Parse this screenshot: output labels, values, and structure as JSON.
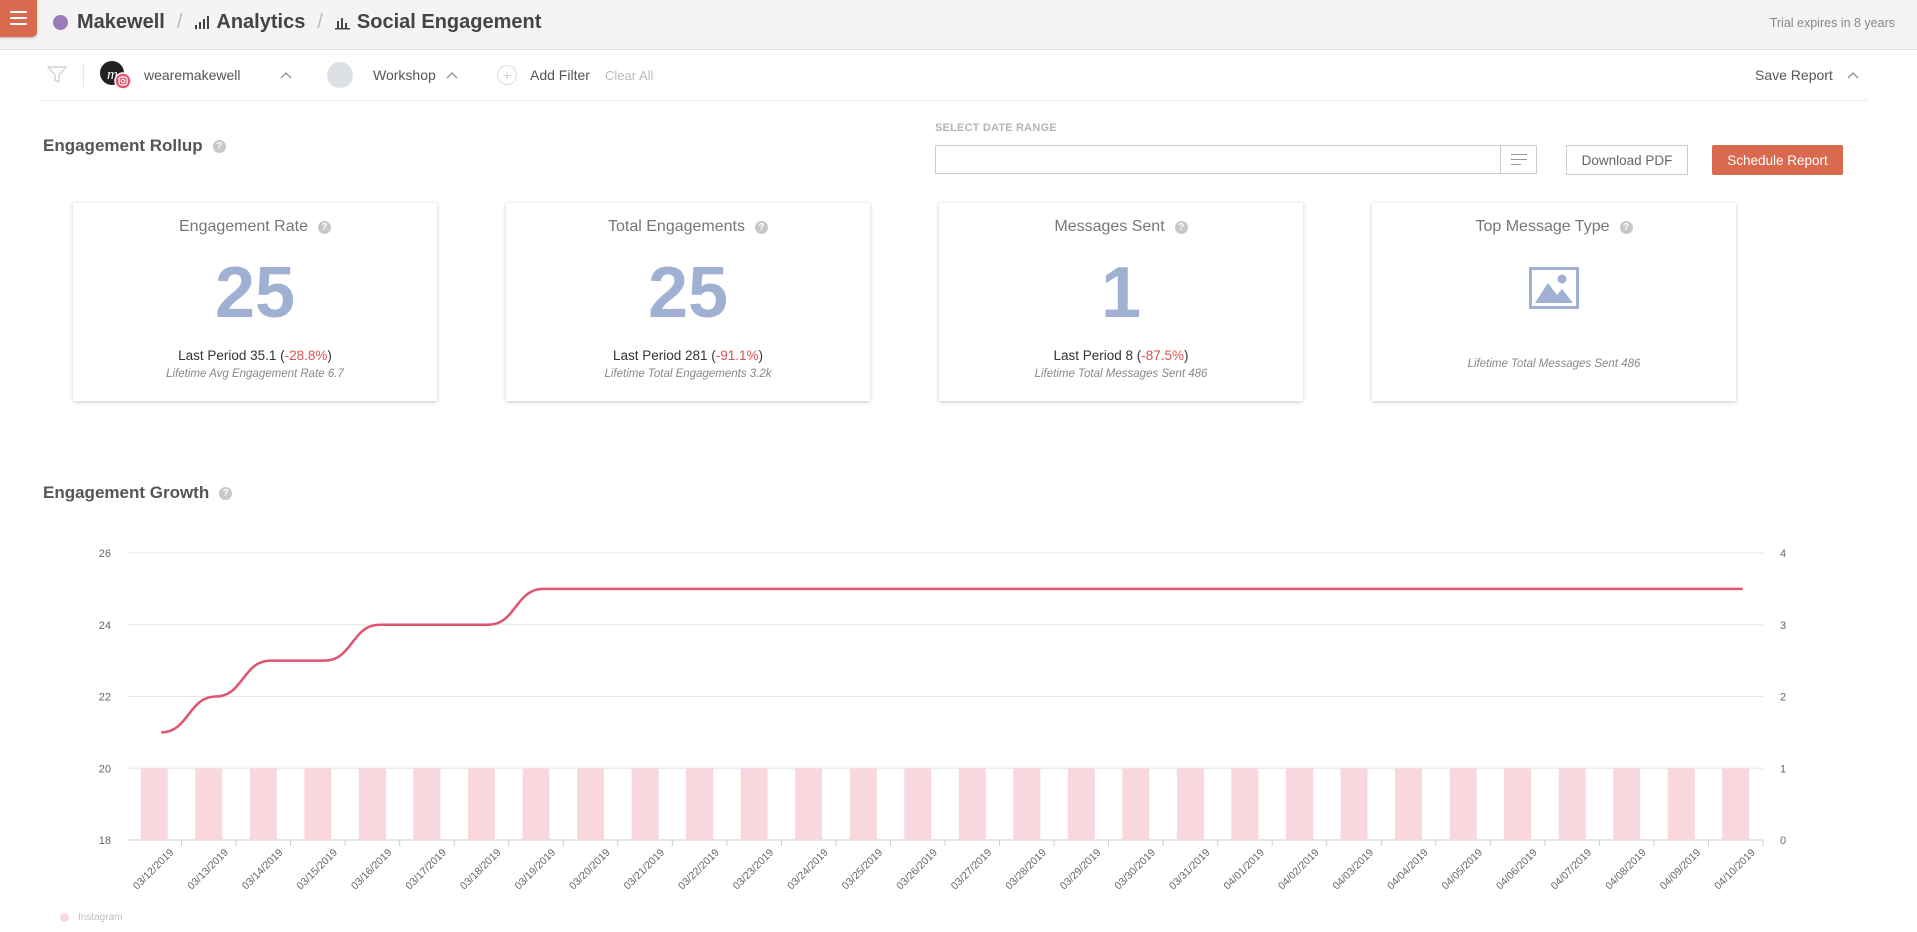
{
  "header": {
    "breadcrumbs": [
      "Makewell",
      "Analytics",
      "Social Engagement"
    ],
    "trial_text": "Trial expires in 8 years"
  },
  "filters": {
    "profile_name": "wearemakewell",
    "group_name": "Workshop",
    "add_filter": "Add Filter",
    "clear_all": "Clear All",
    "save_report": "Save Report"
  },
  "rollup": {
    "title": "Engagement Rollup",
    "date_range_label": "SELECT DATE RANGE",
    "date_range_value": "",
    "download_pdf": "Download PDF",
    "schedule_report": "Schedule Report",
    "cards": [
      {
        "title": "Engagement Rate",
        "value": "25",
        "last_period_prefix": "Last Period 35.1 (",
        "change": "-28.8%",
        "last_period_suffix": ")",
        "lifetime": "Lifetime Avg Engagement Rate 6.7"
      },
      {
        "title": "Total Engagements",
        "value": "25",
        "last_period_prefix": "Last Period 281 (",
        "change": "-91.1%",
        "last_period_suffix": ")",
        "lifetime": "Lifetime Total Engagements 3.2k"
      },
      {
        "title": "Messages Sent",
        "value": "1",
        "last_period_prefix": "Last Period 8 (",
        "change": "-87.5%",
        "last_period_suffix": ")",
        "lifetime": "Lifetime Total Messages Sent 486"
      },
      {
        "title": "Top Message Type",
        "icon": "image-icon",
        "lifetime": "Lifetime Total Messages Sent 486"
      }
    ]
  },
  "growth": {
    "title": "Engagement Growth"
  },
  "colors": {
    "accent": "#d9694f",
    "line": "#e0546e",
    "bar": "#f8d7df",
    "metric": "#9fb0d2",
    "negative": "#d9534f"
  },
  "chart_data": {
    "type": "bar",
    "categories": [
      "03/12/2019",
      "03/13/2019",
      "03/14/2019",
      "03/15/2019",
      "03/16/2019",
      "03/17/2019",
      "03/18/2019",
      "03/19/2019",
      "03/20/2019",
      "03/21/2019",
      "03/22/2019",
      "03/23/2019",
      "03/24/2019",
      "03/25/2019",
      "03/26/2019",
      "03/27/2019",
      "03/28/2019",
      "03/29/2019",
      "03/30/2019",
      "03/31/2019",
      "04/01/2019",
      "04/02/2019",
      "04/03/2019",
      "04/04/2019",
      "04/05/2019",
      "04/06/2019",
      "04/07/2019",
      "04/08/2019",
      "04/09/2019",
      "04/10/2019"
    ],
    "series": [
      {
        "name": "Instagram",
        "type": "bar",
        "axis": "right",
        "values": [
          1,
          1,
          1,
          1,
          1,
          1,
          1,
          1,
          1,
          1,
          1,
          1,
          1,
          1,
          1,
          1,
          1,
          1,
          1,
          1,
          1,
          1,
          1,
          1,
          1,
          1,
          1,
          1,
          1,
          1
        ]
      },
      {
        "type": "line",
        "axis": "left",
        "values": [
          21,
          22,
          23,
          23,
          24,
          24,
          24,
          25,
          25,
          25,
          25,
          25,
          25,
          25,
          25,
          25,
          25,
          25,
          25,
          25,
          25,
          25,
          25,
          25,
          25,
          25,
          25,
          25,
          25,
          25
        ]
      }
    ],
    "y_left": {
      "ylim": [
        18,
        26
      ],
      "ticks": [
        "18",
        "20",
        "22",
        "24",
        "26"
      ]
    },
    "y_right": {
      "ylim": [
        0,
        4
      ],
      "ticks": [
        "0",
        "1",
        "2",
        "3",
        "4"
      ]
    },
    "grid": true,
    "legend": "bottom-left"
  }
}
